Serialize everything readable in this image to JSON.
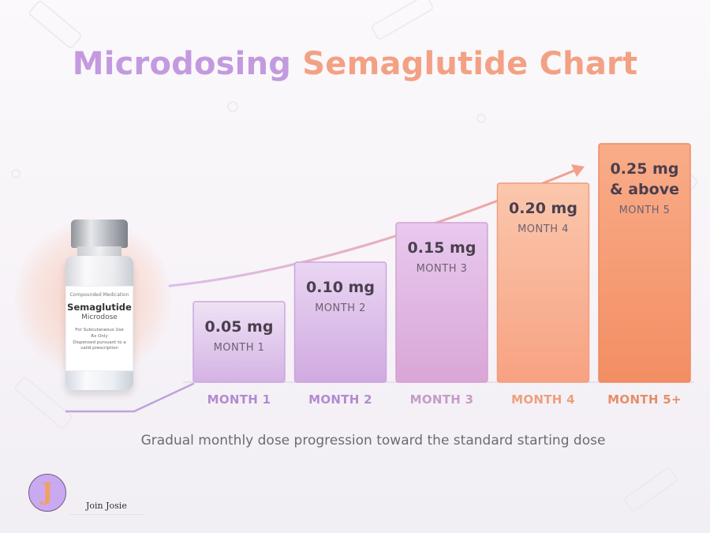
{
  "title": {
    "part1": "Microdosing",
    "part2": "Semaglutide Chart"
  },
  "vial": {
    "line1": "Compounded Medication",
    "line2": "Semaglutide",
    "line3": "Microdose",
    "line4": "For Subcutaneous Use",
    "line5": "Rx Only",
    "line6": "Dispensed pursuant to a valid prescription"
  },
  "chart_data": {
    "type": "bar",
    "categories": [
      "MONTH 1",
      "MONTH 2",
      "MONTH 3",
      "MONTH 4",
      "MONTH 5+"
    ],
    "values": [
      0.05,
      0.1,
      0.15,
      0.2,
      0.25
    ],
    "unit": "mg",
    "bar_labels": [
      [
        "0.05 mg"
      ],
      [
        "0.10 mg"
      ],
      [
        "0.15 mg"
      ],
      [
        "0.20 mg"
      ],
      [
        "0.25 mg",
        "& above"
      ]
    ],
    "bar_sublabels": [
      "MONTH 1",
      "MONTH 2",
      "MONTH 3",
      "MONTH 4",
      "MONTH 5"
    ],
    "title": "Microdosing Semaglutide Chart",
    "xlabel": "",
    "ylabel": "",
    "ylim": [
      0,
      0.25
    ],
    "grid": false,
    "legend": "none",
    "colors": {
      "bar_top": [
        "#efe2f5",
        "#ead5f3",
        "#e8c9ee",
        "#fbc7ad",
        "#f9ac88"
      ],
      "bar_bottom": [
        "#d4b3e4",
        "#d0aae0",
        "#d9a6d6",
        "#f7a282",
        "#f38e64"
      ],
      "bar_border": [
        "#c9a9dc",
        "#c9a6dc",
        "#d2a2d2",
        "#f09d7a",
        "#ec8a62"
      ],
      "tick": [
        "#b48ad0",
        "#b48ad0",
        "#c79bc7",
        "#ee9f7e",
        "#e78d68"
      ]
    }
  },
  "caption": "Gradual monthly dose progression toward the standard starting dose",
  "brand": {
    "logo_letter": "J",
    "name": "Join Josie"
  }
}
